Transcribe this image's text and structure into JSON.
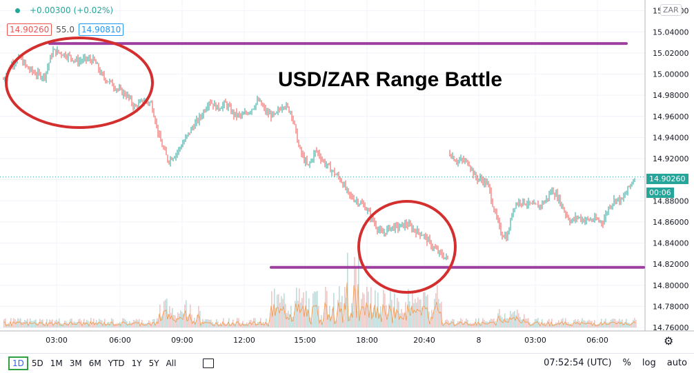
{
  "header": {
    "change": "+0.00300 (+0.02%)",
    "bid": "14.90260",
    "spread": "55.0",
    "ask": "14.90810",
    "currency_badge": "ZAR"
  },
  "annotation_title": "USD/ZAR Range Battle",
  "current_price_label": "14.90260",
  "countdown_label": "00:06",
  "toolbar": {
    "ranges": [
      "1D",
      "5D",
      "1M",
      "3M",
      "6M",
      "YTD",
      "1Y",
      "5Y",
      "All"
    ],
    "clock": "07:52:54 (UTC)",
    "percent": "%",
    "log": "log",
    "auto": "auto"
  },
  "colors": {
    "up": "#26a69a",
    "down": "#ef5350",
    "range_line": "#9c3f9f",
    "circle": "#d32f2f",
    "volume_ma": "#f0a35e"
  },
  "chart_data": {
    "type": "line",
    "title": "USD/ZAR Range Battle",
    "y_ticks": [
      "15.06000",
      "15.04000",
      "15.02000",
      "15.00000",
      "14.98000",
      "14.96000",
      "14.94000",
      "14.92000",
      "14.90000",
      "14.88000",
      "14.86000",
      "14.84000",
      "14.82000",
      "14.80000",
      "14.78000",
      "14.76000"
    ],
    "x_ticks": [
      "03:00",
      "06:00",
      "09:00",
      "12:00",
      "15:00",
      "18:00",
      "20:40",
      "8",
      "03:00",
      "06:00"
    ],
    "ylim": [
      14.76,
      15.065
    ],
    "series": [
      {
        "values": [
          14.995,
          15.01,
          15.015,
          15.005,
          15.0,
          14.998,
          15.022,
          15.02,
          15.017,
          15.012,
          15.014,
          15.013,
          14.998,
          14.992,
          14.985,
          14.98,
          14.968,
          14.975,
          14.972,
          14.938,
          14.918,
          14.925,
          14.937,
          14.95,
          14.96,
          14.975,
          14.968,
          14.972,
          14.962,
          14.96,
          14.966,
          14.975,
          14.963,
          14.96,
          14.972,
          14.964,
          14.928,
          14.912,
          14.928,
          14.916,
          14.908,
          14.9,
          14.885,
          14.88,
          14.874,
          14.86,
          14.848,
          14.855,
          14.855,
          14.858,
          14.852,
          14.848,
          14.838,
          14.83,
          14.825
        ]
      },
      {
        "values": [
          14.925,
          14.918,
          14.918,
          14.916,
          14.902,
          14.9,
          14.895,
          14.87,
          14.85,
          14.845,
          14.875,
          14.88,
          14.878,
          14.875,
          14.875,
          14.88,
          14.89,
          14.883,
          14.87,
          14.86,
          14.865,
          14.862,
          14.862,
          14.862,
          14.86,
          14.875,
          14.882,
          14.88,
          14.892,
          14.902
        ]
      }
    ],
    "annotations": [
      {
        "type": "horizontal_line",
        "value": 15.029
      },
      {
        "type": "horizontal_line",
        "value": 14.817
      }
    ]
  }
}
